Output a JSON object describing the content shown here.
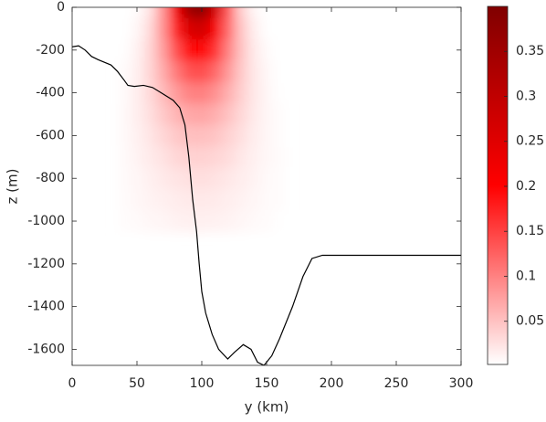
{
  "chart_data": {
    "type": "heatmap",
    "x_label": "y (km)",
    "y_label": "z (m)",
    "xlim": [
      0,
      300
    ],
    "xticks": [
      0,
      50,
      100,
      150,
      200,
      250,
      300
    ],
    "ylim": [
      -1675,
      0
    ],
    "yticks": [
      -1600,
      -1400,
      -1200,
      -1000,
      -800,
      -600,
      -400,
      -200,
      0
    ],
    "heatmap": {
      "x": [
        40,
        50,
        60,
        70,
        80,
        90,
        100,
        110,
        120,
        130,
        140,
        150,
        160
      ],
      "z": [
        0,
        -100,
        -200,
        -300,
        -400,
        -500,
        -600,
        -700,
        -800,
        -900,
        -1000
      ],
      "values": [
        [
          0.0,
          0.004,
          0.023,
          0.086,
          0.215,
          0.351,
          0.382,
          0.273,
          0.133,
          0.041,
          0.009,
          0.001,
          0.0
        ],
        [
          0.002,
          0.008,
          0.031,
          0.086,
          0.176,
          0.258,
          0.275,
          0.212,
          0.12,
          0.049,
          0.015,
          0.003,
          0.0
        ],
        [
          0.003,
          0.012,
          0.035,
          0.078,
          0.138,
          0.188,
          0.198,
          0.162,
          0.102,
          0.05,
          0.019,
          0.006,
          0.001
        ],
        [
          0.005,
          0.014,
          0.034,
          0.067,
          0.106,
          0.136,
          0.142,
          0.12,
          0.083,
          0.046,
          0.021,
          0.008,
          0.002
        ],
        [
          0.006,
          0.015,
          0.032,
          0.055,
          0.08,
          0.099,
          0.102,
          0.089,
          0.065,
          0.04,
          0.021,
          0.009,
          0.003
        ],
        [
          0.007,
          0.015,
          0.027,
          0.044,
          0.06,
          0.071,
          0.073,
          0.065,
          0.05,
          0.033,
          0.019,
          0.009,
          0.004
        ],
        [
          0.007,
          0.013,
          0.022,
          0.033,
          0.044,
          0.051,
          0.052,
          0.048,
          0.038,
          0.027,
          0.016,
          0.009,
          0.004
        ],
        [
          0.006,
          0.011,
          0.018,
          0.025,
          0.033,
          0.037,
          0.038,
          0.035,
          0.029,
          0.021,
          0.014,
          0.008,
          0.005
        ],
        [
          0.006,
          0.009,
          0.014,
          0.019,
          0.023,
          0.026,
          0.027,
          0.025,
          0.021,
          0.016,
          0.011,
          0.007,
          0.004
        ],
        [
          0.005,
          0.008,
          0.011,
          0.014,
          0.017,
          0.019,
          0.019,
          0.018,
          0.015,
          0.012,
          0.009,
          0.006,
          0.004
        ],
        [
          0.004,
          0.006,
          0.008,
          0.01,
          0.012,
          0.014,
          0.014,
          0.013,
          0.011,
          0.009,
          0.007,
          0.005,
          0.003
        ]
      ]
    },
    "colormap": [
      "#ffffff",
      "#ff0000",
      "#800000"
    ],
    "clim": [
      0.002,
      0.4
    ],
    "cticks": [
      0.05,
      0.1,
      0.15,
      0.2,
      0.25,
      0.3,
      0.35
    ],
    "line": {
      "color": "#000000",
      "x": [
        0,
        5,
        10,
        15,
        20,
        30,
        35,
        40,
        43,
        48,
        55,
        62,
        70,
        78,
        83,
        87,
        90,
        93,
        96,
        98,
        100,
        103,
        108,
        113,
        120,
        125,
        132,
        138,
        143,
        148,
        154,
        160,
        170,
        178,
        185,
        193,
        300
      ],
      "values": [
        -185,
        -180,
        -200,
        -230,
        -245,
        -270,
        -300,
        -340,
        -365,
        -370,
        -365,
        -375,
        -405,
        -435,
        -470,
        -550,
        -700,
        -900,
        -1050,
        -1200,
        -1330,
        -1430,
        -1530,
        -1600,
        -1645,
        -1615,
        -1578,
        -1600,
        -1660,
        -1675,
        -1630,
        -1550,
        -1400,
        -1260,
        -1175,
        -1160,
        -1160
      ]
    }
  }
}
